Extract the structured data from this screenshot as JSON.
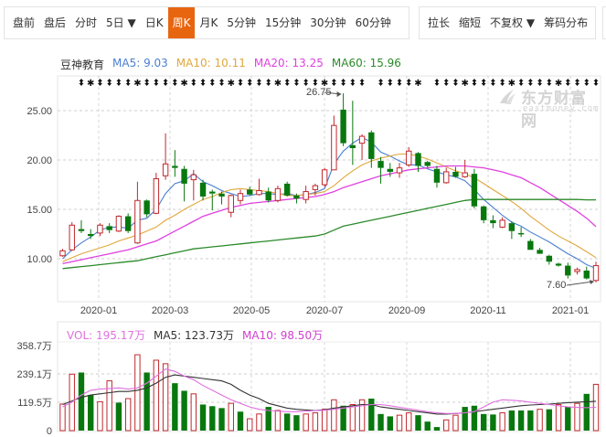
{
  "toolbar": {
    "left_items": [
      {
        "label": "盘前",
        "active": false
      },
      {
        "label": "盘后",
        "active": false
      },
      {
        "label": "分时",
        "active": false
      },
      {
        "label": "5日 ▼",
        "active": false
      },
      {
        "label": "日K",
        "active": false
      },
      {
        "label": "周K",
        "active": true
      },
      {
        "label": "月K",
        "active": false
      },
      {
        "label": "5分钟",
        "active": false
      },
      {
        "label": "15分钟",
        "active": false
      },
      {
        "label": "30分钟",
        "active": false
      },
      {
        "label": "60分钟",
        "active": false
      }
    ],
    "right_items": [
      {
        "label": "拉长"
      },
      {
        "label": "缩短"
      },
      {
        "label": "不复权 ▼"
      },
      {
        "label": "筹码分布"
      }
    ]
  },
  "legend": {
    "stock_name": "豆神教育",
    "ma5": "MA5: 9.03",
    "ma10": "MA10: 10.11",
    "ma20": "MA20: 13.25",
    "ma60": "MA60: 15.96"
  },
  "volume_legend": {
    "vol": "VOL: 195.17万",
    "ma5": "MA5: 123.73万",
    "ma10": "MA10: 98.50万"
  },
  "watermark": {
    "main": "东方财富网",
    "sub": "eastmoney.com"
  },
  "colors": {
    "up": "#c0282d",
    "down": "#08780e",
    "ma5": "#4a7fd1",
    "ma10": "#e0a73c",
    "ma20": "#e040e0",
    "ma60": "#2a8a2a",
    "vol_ma5": "#333333",
    "vol_ma10": "#e070e0",
    "active_tab": "#e8650f"
  },
  "chart_data": [
    {
      "type": "candlestick",
      "title": "豆神教育 周K",
      "xlabel": "",
      "ylabel": "",
      "ylim": [
        6.5,
        28.2
      ],
      "y_ticks": [
        "25.00",
        "20.00",
        "15.00",
        "10.00"
      ],
      "x_ticks": [
        "2020-01",
        "2020-03",
        "2020-05",
        "2020-07",
        "2020-09",
        "2020-11",
        "2021-01"
      ],
      "grid": true,
      "annotations": [
        {
          "text": "26.75",
          "type": "high"
        },
        {
          "text": "7.60",
          "type": "low"
        }
      ],
      "ohlc": [
        [
          10.3,
          11.0,
          10.2,
          10.8
        ],
        [
          10.9,
          13.7,
          10.8,
          13.4
        ],
        [
          13.0,
          13.9,
          12.6,
          12.8
        ],
        [
          12.5,
          13.0,
          12.0,
          12.3
        ],
        [
          12.6,
          13.6,
          12.3,
          13.4
        ],
        [
          13.3,
          13.6,
          12.6,
          12.9
        ],
        [
          12.8,
          14.4,
          12.7,
          14.3
        ],
        [
          14.3,
          14.6,
          12.6,
          12.8
        ],
        [
          11.6,
          17.8,
          11.5,
          15.9
        ],
        [
          15.9,
          16.0,
          14.2,
          14.5
        ],
        [
          14.6,
          18.7,
          14.5,
          18.1
        ],
        [
          18.4,
          22.7,
          18.0,
          19.6
        ],
        [
          19.4,
          21.0,
          18.3,
          19.2
        ],
        [
          19.1,
          19.4,
          15.8,
          17.6
        ],
        [
          18.0,
          19.0,
          15.9,
          18.5
        ],
        [
          17.7,
          18.0,
          15.9,
          16.3
        ],
        [
          16.8,
          17.0,
          14.9,
          16.6
        ],
        [
          16.6,
          16.8,
          15.5,
          16.3
        ],
        [
          14.7,
          16.5,
          14.2,
          16.4
        ],
        [
          15.9,
          17.0,
          15.5,
          16.6
        ],
        [
          17.0,
          17.3,
          16.4,
          16.5
        ],
        [
          16.5,
          18.1,
          16.4,
          16.9
        ],
        [
          16.8,
          17.2,
          15.7,
          15.9
        ],
        [
          15.9,
          17.4,
          15.7,
          17.1
        ],
        [
          17.6,
          17.8,
          16.3,
          16.4
        ],
        [
          16.4,
          16.6,
          15.6,
          16.1
        ],
        [
          16.0,
          17.4,
          15.6,
          16.8
        ],
        [
          17.0,
          17.6,
          16.4,
          17.4
        ],
        [
          17.5,
          19.2,
          17.3,
          19.0
        ],
        [
          19.0,
          24.5,
          19.0,
          23.5
        ],
        [
          25.1,
          26.75,
          21.4,
          21.7
        ],
        [
          21.5,
          26.0,
          19.5,
          21.2
        ],
        [
          21.7,
          22.6,
          20.0,
          22.4
        ],
        [
          22.8,
          23.0,
          19.2,
          20.1
        ],
        [
          19.9,
          20.3,
          17.6,
          19.2
        ],
        [
          19.1,
          19.7,
          18.3,
          18.8
        ],
        [
          18.7,
          19.7,
          18.2,
          19.2
        ],
        [
          19.5,
          21.3,
          19.3,
          20.9
        ],
        [
          20.7,
          20.8,
          18.8,
          19.4
        ],
        [
          19.8,
          19.9,
          19.2,
          19.4
        ],
        [
          19.1,
          19.4,
          17.2,
          17.7
        ],
        [
          17.7,
          19.2,
          17.6,
          18.8
        ],
        [
          18.8,
          19.3,
          18.2,
          18.3
        ],
        [
          18.3,
          20.0,
          18.2,
          18.7
        ],
        [
          18.6,
          19.1,
          15.1,
          15.3
        ],
        [
          15.3,
          15.4,
          13.6,
          13.9
        ],
        [
          13.9,
          14.4,
          13.1,
          13.6
        ],
        [
          13.2,
          14.2,
          13.1,
          13.9
        ],
        [
          13.6,
          13.8,
          12.0,
          12.8
        ],
        [
          12.6,
          13.2,
          12.2,
          12.5
        ],
        [
          11.8,
          12.0,
          10.9,
          10.9
        ],
        [
          10.9,
          11.1,
          10.6,
          10.5
        ],
        [
          10.3,
          10.4,
          9.4,
          9.7
        ],
        [
          9.5,
          9.6,
          9.2,
          9.3
        ],
        [
          9.3,
          9.6,
          8.0,
          8.3
        ],
        [
          8.7,
          9.1,
          8.4,
          8.9
        ],
        [
          8.8,
          9.2,
          7.9,
          8.0
        ],
        [
          7.8,
          9.7,
          7.6,
          9.3
        ]
      ],
      "series": [
        {
          "name": "MA5",
          "values": [
            10.0,
            10.9,
            11.6,
            12.2,
            12.9,
            13.2,
            13.2,
            13.1,
            13.9,
            14.1,
            15.0,
            16.6,
            17.6,
            17.9,
            18.6,
            17.8,
            17.4,
            16.9,
            16.6,
            16.3,
            16.4,
            16.6,
            16.6,
            16.5,
            16.6,
            16.4,
            16.5,
            16.7,
            17.1,
            19.6,
            20.9,
            21.7,
            22.3,
            21.8,
            20.8,
            20.4,
            19.9,
            19.5,
            19.5,
            19.1,
            18.8,
            18.5,
            18.3,
            17.9,
            17.0,
            16.0,
            15.2,
            14.4,
            13.7,
            13.3,
            12.7,
            12.2,
            11.7,
            11.1,
            10.5,
            10.0,
            9.4,
            9.03
          ]
        },
        {
          "name": "MA10",
          "values": [
            9.7,
            10.1,
            10.5,
            10.8,
            11.1,
            11.4,
            11.8,
            12.1,
            12.4,
            12.8,
            13.2,
            13.9,
            14.4,
            15.0,
            15.5,
            16.0,
            16.3,
            16.7,
            17.0,
            17.1,
            17.0,
            16.9,
            16.8,
            16.6,
            16.4,
            16.4,
            16.5,
            16.6,
            16.8,
            17.4,
            18.2,
            18.9,
            19.5,
            19.9,
            20.2,
            20.4,
            20.6,
            20.6,
            20.4,
            20.1,
            19.7,
            19.3,
            18.9,
            18.6,
            18.2,
            17.6,
            17.0,
            16.4,
            15.8,
            15.1,
            14.3,
            13.6,
            12.9,
            12.3,
            11.8,
            11.3,
            10.7,
            10.11
          ]
        },
        {
          "name": "MA20",
          "values": [
            9.5,
            9.7,
            9.9,
            10.1,
            10.3,
            10.5,
            10.7,
            10.9,
            11.2,
            11.5,
            11.8,
            12.3,
            12.8,
            13.3,
            13.8,
            14.3,
            14.6,
            14.9,
            15.2,
            15.4,
            15.6,
            15.7,
            15.8,
            15.9,
            16.0,
            16.1,
            16.2,
            16.3,
            16.5,
            16.8,
            17.2,
            17.5,
            17.8,
            18.1,
            18.4,
            18.6,
            18.8,
            19.0,
            19.1,
            19.2,
            19.3,
            19.4,
            19.4,
            19.4,
            19.3,
            19.2,
            19.0,
            18.8,
            18.5,
            18.2,
            17.7,
            17.2,
            16.6,
            16.0,
            15.4,
            14.8,
            14.1,
            13.25
          ]
        },
        {
          "name": "MA60",
          "values": [
            9.0,
            9.1,
            9.2,
            9.3,
            9.4,
            9.5,
            9.6,
            9.7,
            9.8,
            10.0,
            10.2,
            10.4,
            10.6,
            10.8,
            11.0,
            11.1,
            11.2,
            11.3,
            11.4,
            11.5,
            11.6,
            11.7,
            11.8,
            11.9,
            12.0,
            12.1,
            12.2,
            12.3,
            12.5,
            12.9,
            13.3,
            13.5,
            13.7,
            13.9,
            14.1,
            14.3,
            14.5,
            14.7,
            14.9,
            15.1,
            15.3,
            15.5,
            15.7,
            15.9,
            16.0,
            16.0,
            16.0,
            16.0,
            16.0,
            16.0,
            16.0,
            16.0,
            16.0,
            16.0,
            16.0,
            16.0,
            15.96,
            15.96
          ]
        }
      ]
    },
    {
      "type": "bar",
      "title": "VOL",
      "ylabel": "万",
      "ylim": [
        0,
        358.7
      ],
      "y_ticks": [
        "358.7万",
        "239.1万",
        "119.5万",
        "0"
      ],
      "grid": true,
      "values": [
        112,
        238,
        245,
        150,
        122,
        210,
        118,
        135,
        320,
        245,
        297,
        282,
        200,
        168,
        155,
        110,
        103,
        95,
        115,
        80,
        50,
        70,
        100,
        85,
        72,
        65,
        70,
        75,
        90,
        130,
        105,
        110,
        130,
        135,
        70,
        60,
        65,
        75,
        65,
        38,
        15,
        45,
        65,
        100,
        105,
        70,
        68,
        75,
        85,
        85,
        85,
        90,
        90,
        110,
        100,
        115,
        155,
        195.17
      ],
      "up": [
        true,
        true,
        false,
        false,
        true,
        true,
        false,
        true,
        true,
        false,
        true,
        true,
        false,
        false,
        true,
        false,
        false,
        false,
        true,
        false,
        true,
        true,
        false,
        true,
        false,
        false,
        true,
        true,
        true,
        true,
        false,
        true,
        true,
        false,
        false,
        false,
        true,
        true,
        false,
        false,
        false,
        true,
        true,
        false,
        false,
        false,
        false,
        true,
        false,
        false,
        false,
        true,
        false,
        true,
        false,
        true,
        false,
        true
      ],
      "series": [
        {
          "name": "MA5",
          "values": [
            110,
            125,
            140,
            150,
            155,
            160,
            165,
            165,
            170,
            180,
            200,
            225,
            235,
            230,
            225,
            220,
            215,
            210,
            195,
            170,
            150,
            135,
            115,
            105,
            95,
            90,
            87,
            85,
            88,
            95,
            100,
            105,
            110,
            110,
            100,
            95,
            90,
            85,
            80,
            75,
            70,
            70,
            72,
            75,
            80,
            85,
            90,
            95,
            100,
            105,
            108,
            110,
            112,
            115,
            118,
            120,
            122,
            123.73
          ]
        },
        {
          "name": "MA10",
          "values": [
            100,
            120,
            150,
            170,
            175,
            178,
            180,
            175,
            180,
            200,
            230,
            260,
            250,
            230,
            215,
            190,
            170,
            150,
            130,
            115,
            100,
            90,
            85,
            82,
            80,
            80,
            82,
            84,
            86,
            90,
            95,
            100,
            105,
            110,
            110,
            105,
            98,
            92,
            86,
            80,
            75,
            72,
            72,
            75,
            80,
            100,
            120,
            130,
            128,
            125,
            120,
            115,
            110,
            105,
            100,
            98,
            97,
            98.5
          ]
        }
      ]
    }
  ]
}
